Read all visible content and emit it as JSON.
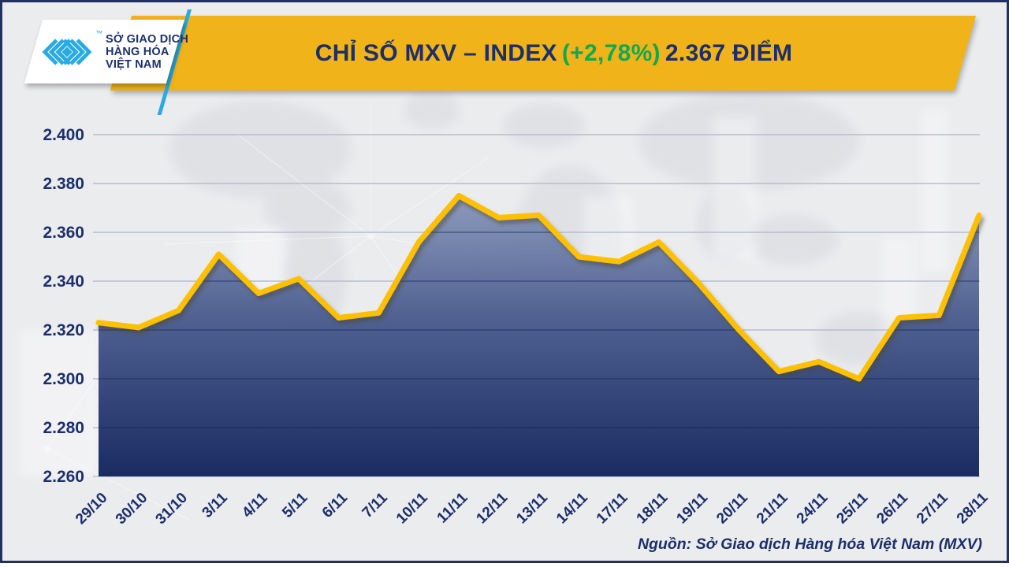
{
  "header": {
    "logo": {
      "lines": [
        "SỞ GIAO DỊCH",
        "HÀNG HÓA",
        "VIỆT NAM"
      ],
      "trademark": "™",
      "mark_icon": "mxv-chevron-logo"
    },
    "title": {
      "prefix": "CHỈ SỐ MXV – INDEX",
      "change": "(+2,78%)",
      "points": "2.367 ĐIỂM"
    }
  },
  "footer": {
    "source": "Nguồn: Sở Giao dịch Hàng hóa Việt Nam (MXV)"
  },
  "colors": {
    "banner_gold": "#F0B31A",
    "line_gold": "#FFC000",
    "navy_text": "#1C2F6B",
    "green_change": "#0FA94F",
    "area_top": "#8C9BBC",
    "area_mid": "#4A5C8E",
    "area_bottom": "#12255C",
    "background": "#EBECEE",
    "border_navy": "#232F60",
    "logo_cyan": "#29ABE2",
    "gridline_light": "#B5BDCE",
    "gridline_dark": "#16295E"
  },
  "chart_data": {
    "type": "area",
    "title": "CHỈ SỐ MXV – INDEX (+2,78%) 2.367 ĐIỂM",
    "categories": [
      "29/10",
      "30/10",
      "31/10",
      "3/11",
      "4/11",
      "5/11",
      "6/11",
      "7/11",
      "10/11",
      "11/11",
      "12/11",
      "13/11",
      "14/11",
      "17/11",
      "18/11",
      "19/11",
      "20/11",
      "21/11",
      "24/11",
      "25/11",
      "26/11",
      "27/11",
      "28/11"
    ],
    "values": [
      2.323,
      2.321,
      2.328,
      2.351,
      2.335,
      2.341,
      2.325,
      2.327,
      2.356,
      2.375,
      2.366,
      2.367,
      2.35,
      2.348,
      2.356,
      2.339,
      2.32,
      2.303,
      2.307,
      2.3,
      2.325,
      2.326,
      2.367
    ],
    "ylim": [
      2.26,
      2.4
    ],
    "ytick_labels": [
      "2.400",
      "2.380",
      "2.360",
      "2.340",
      "2.320",
      "2.300",
      "2.280",
      "2.260"
    ],
    "xlabel": "",
    "ylabel": "",
    "grid": true,
    "legend": "none",
    "x_label_rotation_deg": 45,
    "latest_value_label": "2.367",
    "change_label": "+2,78%"
  }
}
